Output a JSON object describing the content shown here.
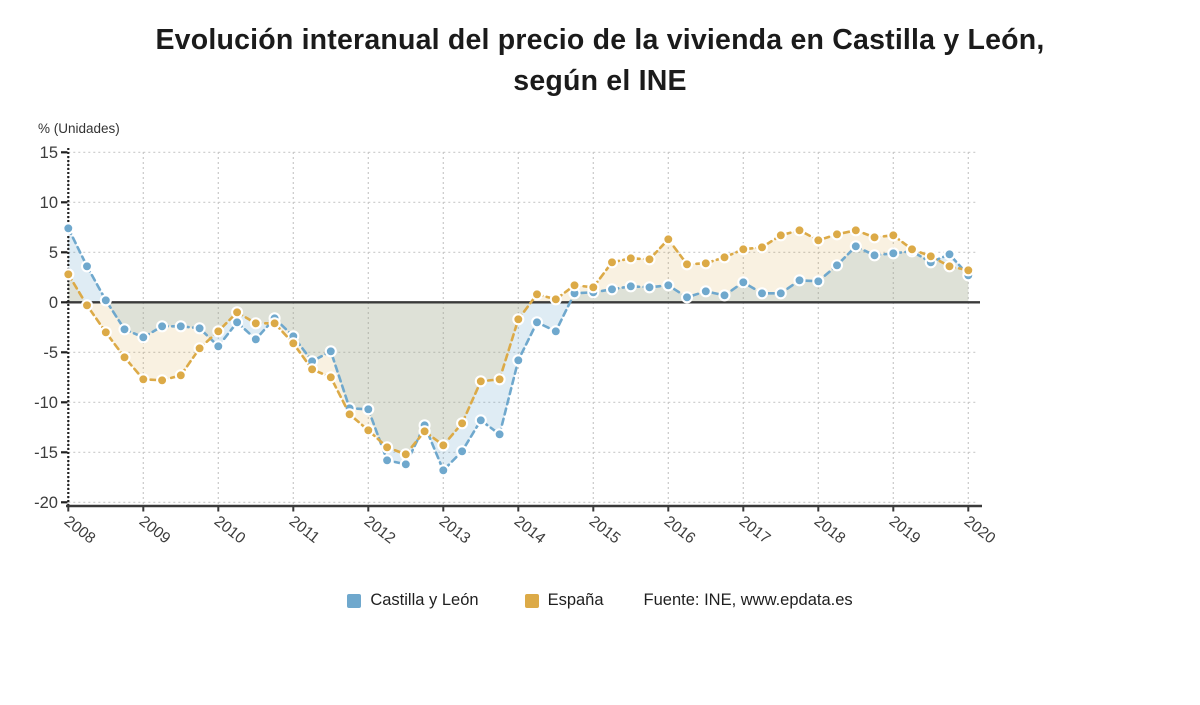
{
  "title": {
    "line1": "Evolución interanual del precio de la vivienda en Castilla y León,",
    "line2": "según el INE"
  },
  "y_axis_unit": "% (Unidades)",
  "legend": {
    "series1_label": "Castilla y León",
    "series2_label": "España",
    "source": "Fuente: INE, www.epdata.es"
  },
  "colors": {
    "castilla": "#6fa8cd",
    "espana": "#dcaa47",
    "grid": "#c9c9c9",
    "axis": "#3a3a3a",
    "text": "#3d3d3d",
    "marker_ring": "#ffffff",
    "castilla_fill": "rgba(111,168,205,0.22)",
    "espana_fill": "rgba(220,170,71,0.16)"
  },
  "chart_data": {
    "type": "line",
    "title": "Evolución interanual del precio de la vivienda en Castilla y León, según el INE",
    "ylabel": "% (Unidades)",
    "ylim": [
      -20,
      15
    ],
    "y_ticks": [
      15,
      10,
      5,
      0,
      -5,
      -10,
      -15,
      -20
    ],
    "x_tick_labels": [
      "2008",
      "2009",
      "2010",
      "2011",
      "2012",
      "2013",
      "2014",
      "2015",
      "2016",
      "2017",
      "2018",
      "2019",
      "2020"
    ],
    "grid": true,
    "legend_position": "bottom",
    "x": [
      "T1 2008",
      "T2 2008",
      "T3 2008",
      "T4 2008",
      "T1 2009",
      "T2 2009",
      "T3 2009",
      "T4 2009",
      "T1 2010",
      "T2 2010",
      "T3 2010",
      "T4 2010",
      "T1 2011",
      "T2 2011",
      "T3 2011",
      "T4 2011",
      "T1 2012",
      "T2 2012",
      "T3 2012",
      "T4 2012",
      "T1 2013",
      "T2 2013",
      "T3 2013",
      "T4 2013",
      "T1 2014",
      "T2 2014",
      "T3 2014",
      "T4 2014",
      "T1 2015",
      "T2 2015",
      "T3 2015",
      "T4 2015",
      "T1 2016",
      "T2 2016",
      "T3 2016",
      "T4 2016",
      "T1 2017",
      "T2 2017",
      "T3 2017",
      "T4 2017",
      "T1 2018",
      "T2 2018",
      "T3 2018",
      "T4 2018",
      "T1 2019",
      "T2 2019",
      "T3 2019",
      "T4 2019",
      "T1 2020"
    ],
    "series": [
      {
        "name": "Castilla y León",
        "key": "castilla",
        "color": "#6fa8cd",
        "values": [
          7.4,
          3.6,
          0.2,
          -2.7,
          -3.5,
          -2.4,
          -2.4,
          -2.6,
          -4.4,
          -2.0,
          -3.7,
          -1.6,
          -3.4,
          -5.9,
          -4.9,
          -10.6,
          -10.7,
          -15.8,
          -16.2,
          -12.3,
          -16.8,
          -14.9,
          -11.8,
          -13.2,
          -5.8,
          -2.0,
          -2.9,
          0.9,
          1.0,
          1.3,
          1.6,
          1.5,
          1.7,
          0.5,
          1.1,
          0.7,
          2.0,
          0.9,
          0.9,
          2.2,
          2.1,
          3.7,
          5.6,
          4.7,
          4.9,
          5.1,
          4.0,
          4.8,
          2.7
        ]
      },
      {
        "name": "España",
        "key": "espana",
        "color": "#dcaa47",
        "values": [
          2.8,
          -0.3,
          -3.0,
          -5.5,
          -7.7,
          -7.8,
          -7.3,
          -4.6,
          -2.9,
          -1.0,
          -2.1,
          -2.1,
          -4.1,
          -6.7,
          -7.5,
          -11.2,
          -12.8,
          -14.5,
          -15.2,
          -12.9,
          -14.3,
          -12.1,
          -7.9,
          -7.7,
          -1.7,
          0.8,
          0.3,
          1.7,
          1.5,
          4.0,
          4.4,
          4.3,
          6.3,
          3.8,
          3.9,
          4.5,
          5.3,
          5.5,
          6.7,
          7.2,
          6.2,
          6.8,
          7.2,
          6.5,
          6.7,
          5.3,
          4.6,
          3.6,
          3.2
        ]
      }
    ]
  }
}
